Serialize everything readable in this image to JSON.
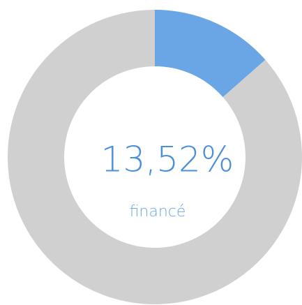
{
  "chart_data": {
    "type": "donut",
    "values": [
      13.52,
      86.48
    ],
    "value_labels": [
      "13,52%",
      null
    ],
    "colors": [
      "#6aa6e6",
      "#d0d0d0"
    ],
    "label": "financé"
  }
}
